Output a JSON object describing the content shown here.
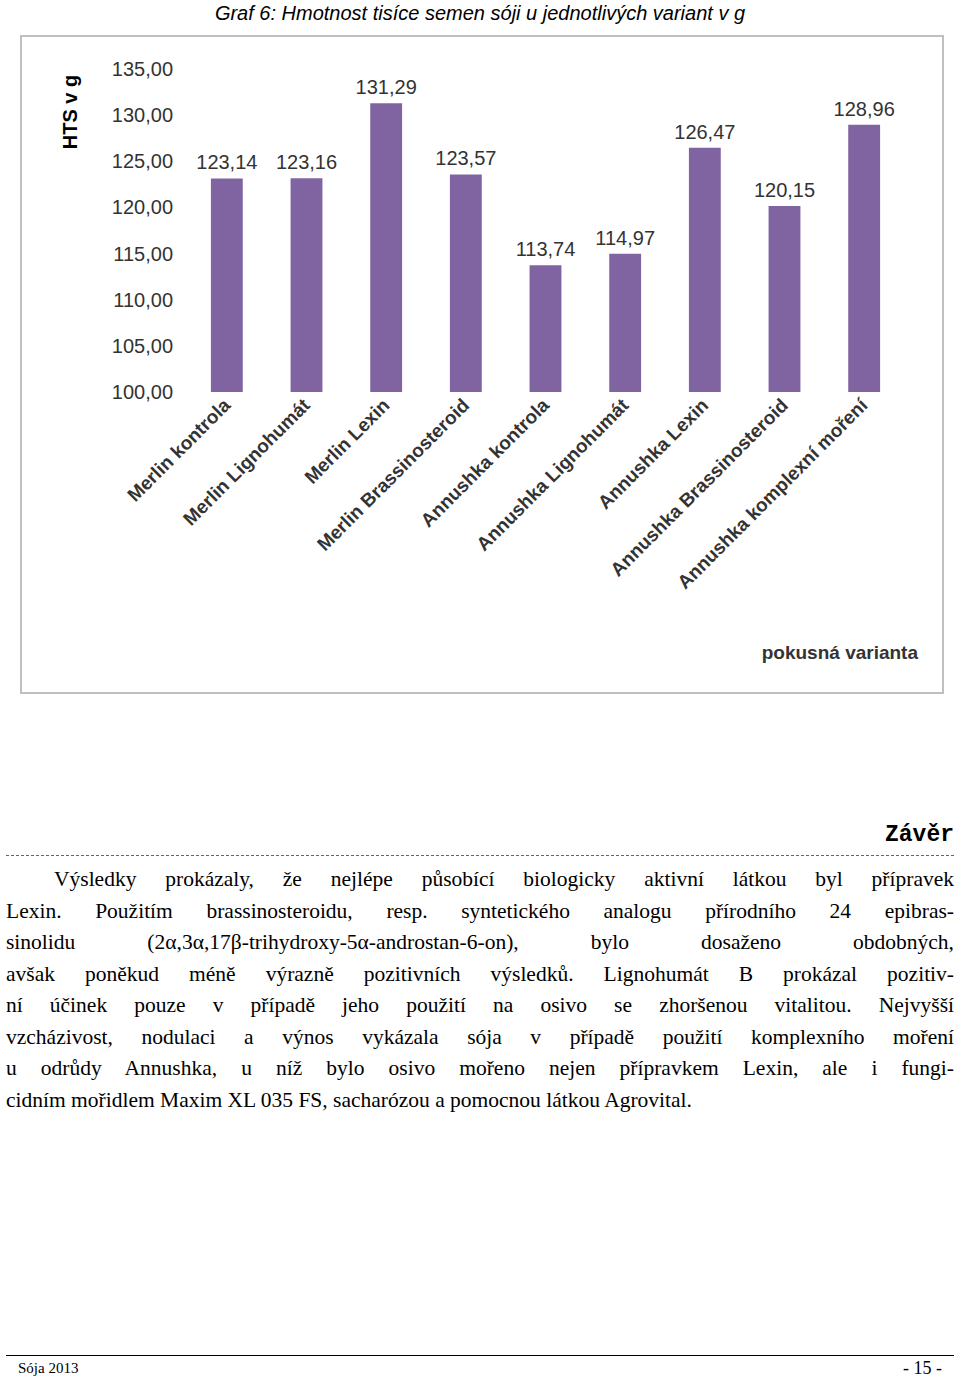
{
  "chart_data": {
    "type": "bar",
    "title": "Graf 6: Hmotnost tisíce semen sóji u jednotlivých variant v g",
    "x_label": "pokusná varianta",
    "y_label": "HTS v g",
    "categories": [
      "Merlin kontrola",
      "Merlin Lignohumát",
      "Merlin Lexin",
      "Merlin Brassinosteroid",
      "Annushka kontrola",
      "Annushka Lignohumát",
      "Annushka Lexin",
      "Annushka Brassinosteroid",
      "Annushka komplexní moření"
    ],
    "values": [
      123.14,
      123.16,
      131.29,
      123.57,
      113.74,
      114.97,
      126.47,
      120.15,
      128.96
    ],
    "value_labels": [
      "123,14",
      "123,16",
      "131,29",
      "123,57",
      "113,74",
      "114,97",
      "126,47",
      "120,15",
      "128,96"
    ],
    "color": "#8064a2",
    "ylim": [
      100,
      135
    ],
    "yticks": [
      {
        "value": 100,
        "label": "100,00"
      },
      {
        "value": 105,
        "label": "105,00"
      },
      {
        "value": 110,
        "label": "110,00"
      },
      {
        "value": 115,
        "label": "115,00"
      },
      {
        "value": 120,
        "label": "120,00"
      },
      {
        "value": 125,
        "label": "125,00"
      },
      {
        "value": 130,
        "label": "130,00"
      },
      {
        "value": 135,
        "label": "135,00"
      }
    ],
    "grid": false,
    "data_labels": true
  },
  "page": {
    "heading": "Závěr",
    "paragraph_lines": [
      "Výsledky prokázaly, že nejlépe působící biologicky aktivní látkou byl přípravek",
      "Lexin. Použitím brassinosteroidu, resp. syntetického analogu přírodního 24 epibras-",
      "sinolidu (2α,3α,17β-trihydroxy-5α-androstan-6-on), bylo dosaženo obdobných,",
      "avšak poněkud méně výrazně pozitivních výsledků. Lignohumát B prokázal pozitiv-",
      "ní účinek pouze v případě jeho použití na osivo se zhoršenou vitalitou. Nejvyšší",
      "vzcházivost, nodulaci a výnos vykázala sója v případě použití komplexního moření",
      "u odrůdy Annushka, u níž bylo osivo mořeno nejen přípravkem Lexin, ale i fungi-",
      "cidním mořidlem Maxim XL 035 FS, sacharózou a pomocnou látkou Agrovital."
    ],
    "footer": {
      "left": "Sója 2013",
      "right": "- 15 -"
    }
  }
}
